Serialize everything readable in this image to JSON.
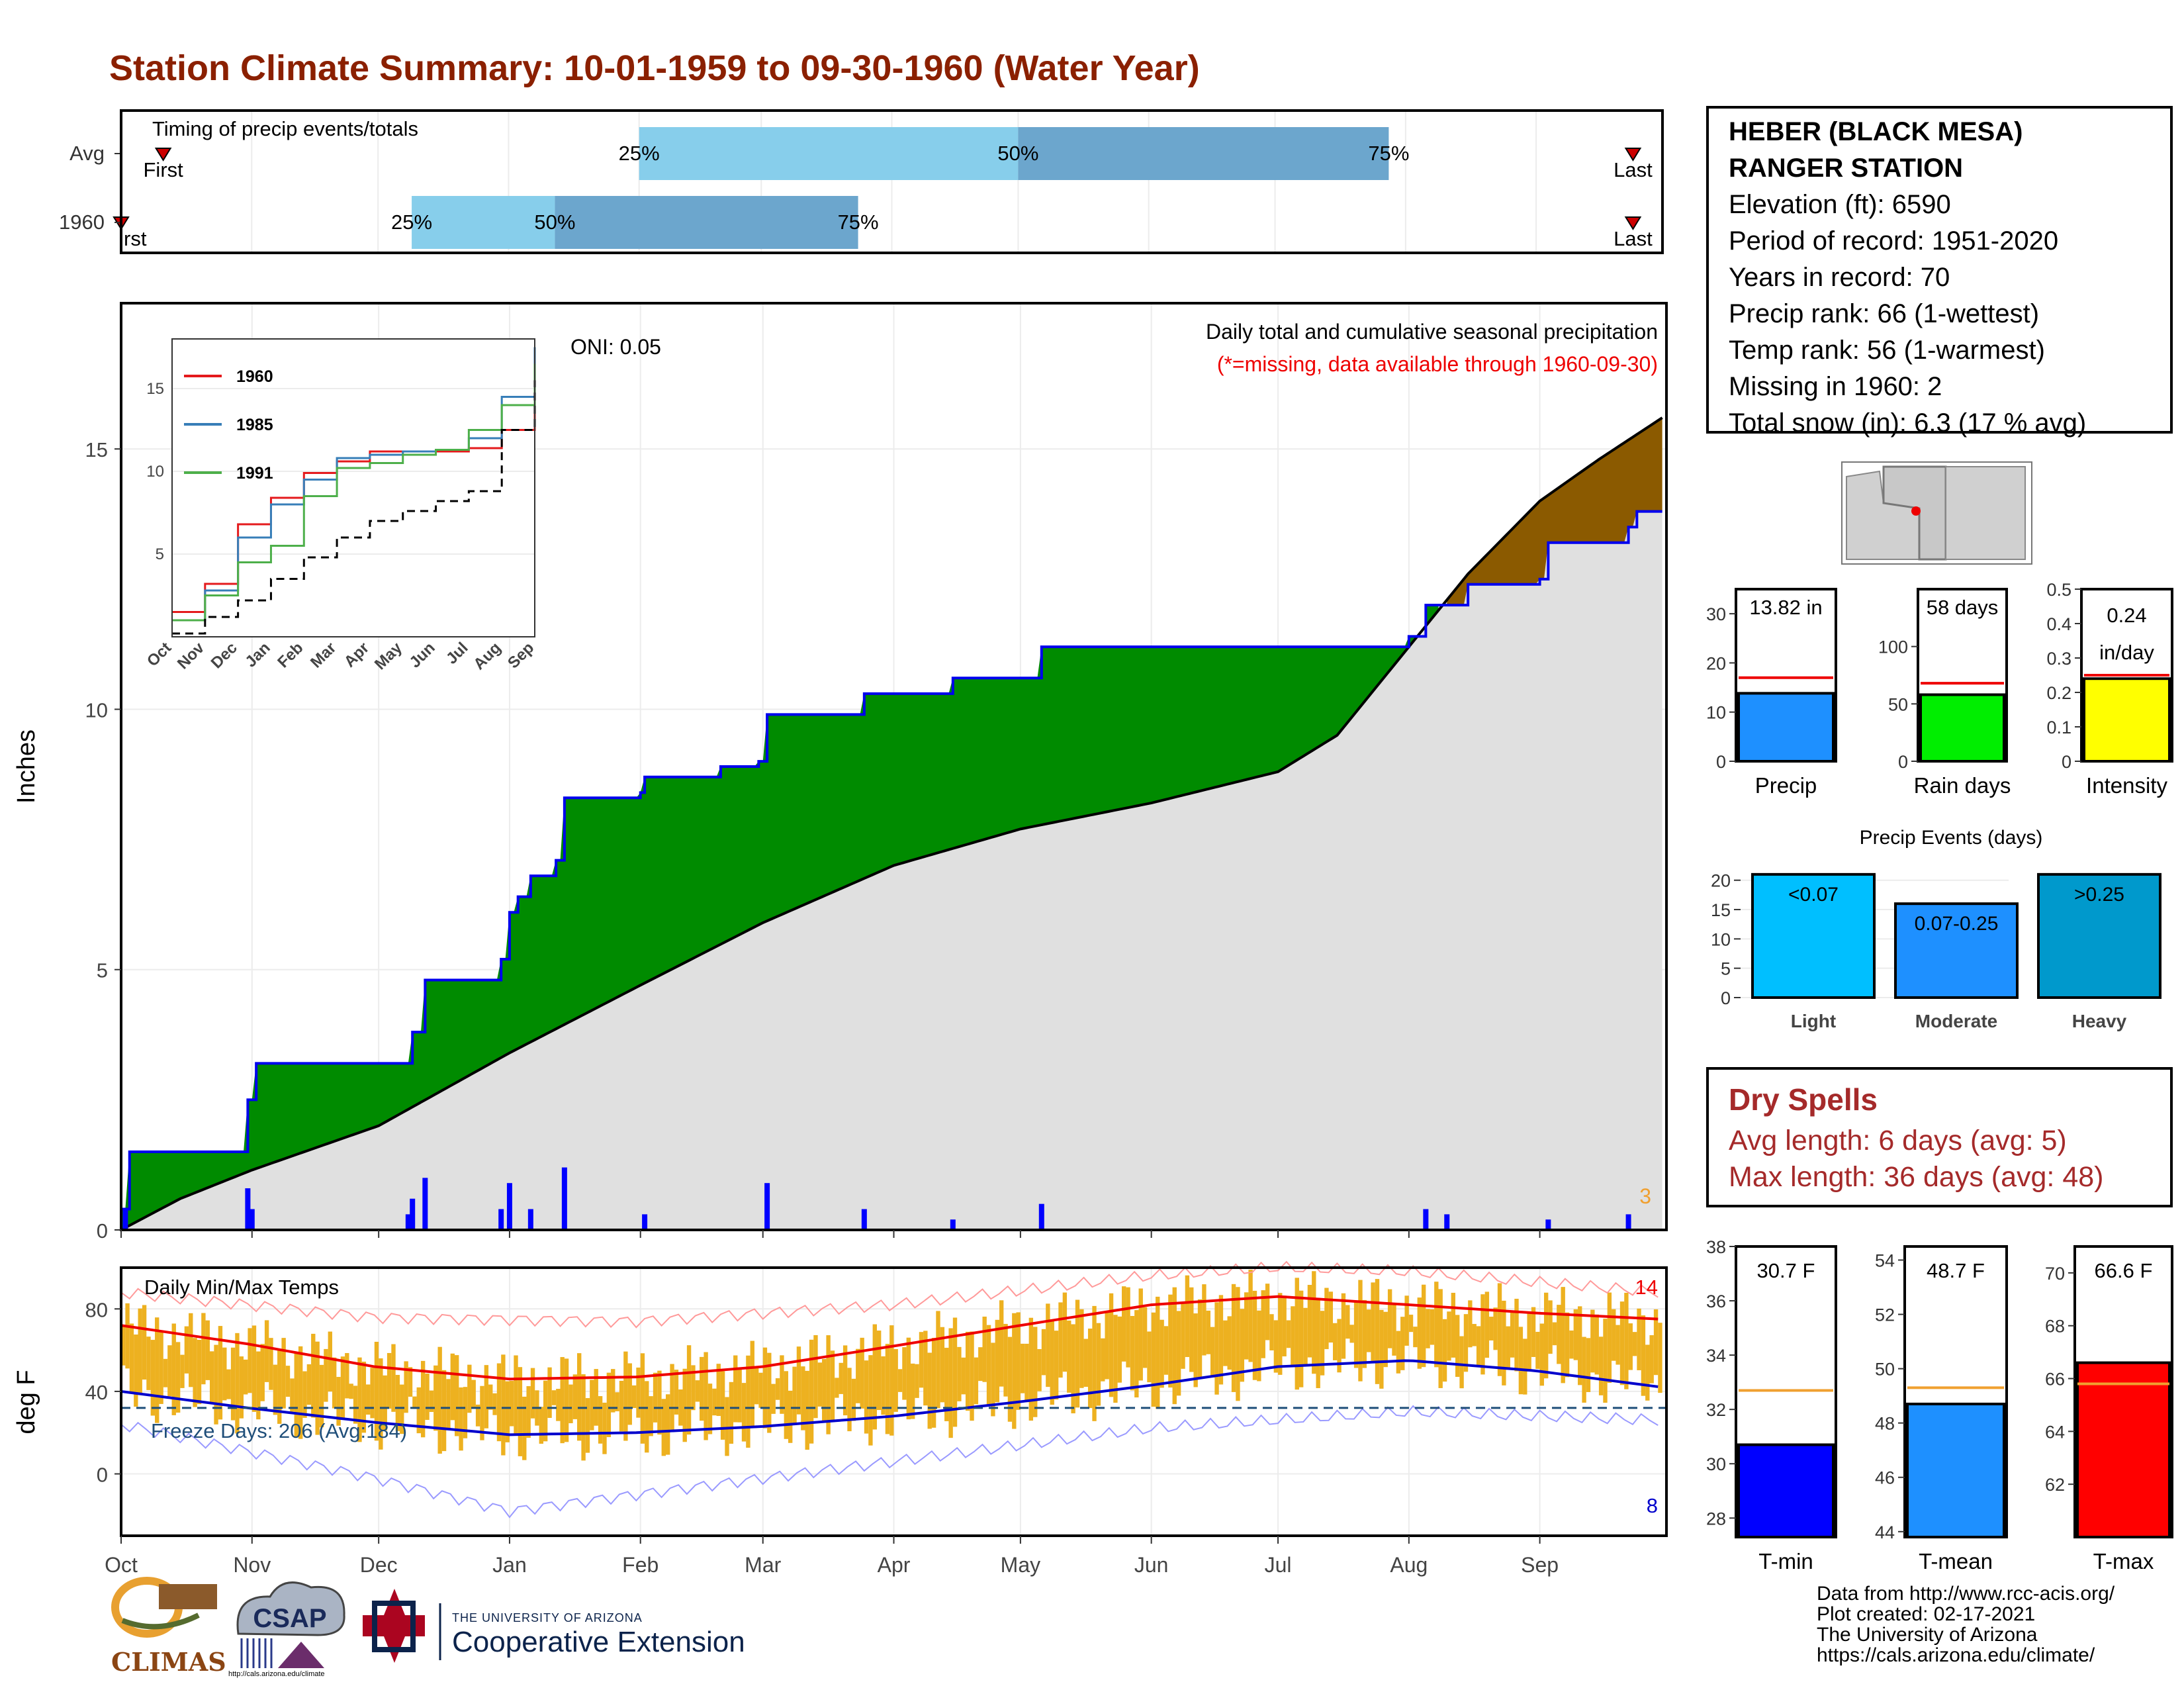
{
  "title": "Station Climate Summary: 10-01-1959 to 09-30-1960 (Water Year)",
  "station": {
    "name_line1": "HEBER (BLACK MESA)",
    "name_line2": "RANGER STATION",
    "elevation": "Elevation (ft): 6590",
    "period": "Period of record: 1951-2020",
    "years": "Years in record: 70",
    "precip_rank": "Precip rank: 66 (1-wettest)",
    "temp_rank": "Temp rank: 56 (1-warmest)",
    "missing": "Missing in 1960: 2",
    "snow": "Total snow (in): 6.3 (17 % avg)"
  },
  "dry_spells": {
    "heading": "Dry Spells",
    "avg": "Avg length: 6 days (avg: 5)",
    "max": "Max length: 36 days (avg: 48)"
  },
  "footer": [
    "Data from http://www.rcc-acis.org/",
    "Plot created: 02-17-2021",
    "The University of Arizona",
    "https://cals.arizona.edu/climate/"
  ],
  "logos": {
    "climas": "CLIMAS",
    "csap": "CSAP",
    "csap_url": "http://cals.arizona.edu/climate",
    "ua_small": "THE UNIVERSITY OF ARIZONA",
    "ua_big": "Cooperative Extension"
  },
  "colors": {
    "title": "#8B2000",
    "light_blue": "#87CEEB",
    "mid_blue": "#6CA6CD",
    "green": "#008B00",
    "brown": "#8B5A00",
    "gray_fill": "#E0E0E0",
    "temp_bar": "#EDB120"
  },
  "chart_data": [
    {
      "id": "timing",
      "type": "bar",
      "title": "Timing of precip events/totals",
      "categories": [
        "Avg",
        "1960"
      ],
      "first_label": "First",
      "last_label": "Last",
      "first_label_clipped": "rst",
      "quartile_labels": [
        "25%",
        "50%",
        "75%"
      ],
      "series": [
        {
          "name": "Avg",
          "first": "1959-10-11",
          "q25": "1960-02-01",
          "q50": "1960-05-01",
          "q75": "1960-07-28",
          "last": "1960-09-24"
        },
        {
          "name": "1960",
          "first": "1959-10-01",
          "q25": "1959-12-09",
          "q50": "1960-01-12",
          "q75": "1960-03-24",
          "last": "1960-09-24"
        }
      ]
    },
    {
      "id": "precip",
      "type": "area",
      "title": "Daily total and cumulative seasonal precipitation",
      "subtitle": "(*=missing, data available through 1960-09-30)",
      "oni": "ONI: 0.05",
      "ylabel": "Inches",
      "ylim": [
        0,
        17.8
      ],
      "yticks": [
        0,
        5,
        10,
        15
      ],
      "x_months": [
        "Oct",
        "Nov",
        "Dec",
        "Jan",
        "Feb",
        "Mar",
        "Apr",
        "May",
        "Jun",
        "Jul",
        "Aug",
        "Sep"
      ],
      "corner_count": "3",
      "cumulative_1960": [
        [
          "1959-10-01",
          0.4
        ],
        [
          "1959-10-03",
          1.5
        ],
        [
          "1959-10-30",
          1.5
        ],
        [
          "1959-10-31",
          2.5
        ],
        [
          "1959-11-02",
          3.2
        ],
        [
          "1959-12-08",
          3.2
        ],
        [
          "1959-12-09",
          3.8
        ],
        [
          "1959-12-12",
          4.8
        ],
        [
          "1959-12-30",
          5.2
        ],
        [
          "1960-01-01",
          6.1
        ],
        [
          "1960-01-03",
          6.4
        ],
        [
          "1960-01-06",
          6.8
        ],
        [
          "1960-01-12",
          7.1
        ],
        [
          "1960-01-14",
          8.3
        ],
        [
          "1960-02-01",
          8.4
        ],
        [
          "1960-02-02",
          8.7
        ],
        [
          "1960-02-20",
          8.9
        ],
        [
          "1960-02-29",
          9.0
        ],
        [
          "1960-03-02",
          9.9
        ],
        [
          "1960-03-25",
          10.3
        ],
        [
          "1960-04-15",
          10.6
        ],
        [
          "1960-05-06",
          11.2
        ],
        [
          "1960-06-30",
          11.2
        ],
        [
          "1960-07-01",
          11.2
        ],
        [
          "1960-08-01",
          11.4
        ],
        [
          "1960-08-05",
          12.0
        ],
        [
          "1960-08-15",
          12.4
        ],
        [
          "1960-09-01",
          12.5
        ],
        [
          "1960-09-03",
          13.2
        ],
        [
          "1960-09-22",
          13.5
        ],
        [
          "1960-09-24",
          13.8
        ],
        [
          "1960-09-30",
          13.8
        ]
      ],
      "average_cumulative": [
        [
          "1959-10-01",
          0.0
        ],
        [
          "1959-10-15",
          0.6
        ],
        [
          "1959-11-01",
          1.15
        ],
        [
          "1959-12-01",
          2.0
        ],
        [
          "1960-01-01",
          3.4
        ],
        [
          "1960-02-01",
          4.7
        ],
        [
          "1960-03-01",
          5.9
        ],
        [
          "1960-04-01",
          7.0
        ],
        [
          "1960-05-01",
          7.7
        ],
        [
          "1960-06-01",
          8.2
        ],
        [
          "1960-07-01",
          8.8
        ],
        [
          "1960-07-15",
          9.5
        ],
        [
          "1960-08-01",
          11.2
        ],
        [
          "1960-08-15",
          12.6
        ],
        [
          "1960-09-01",
          14.0
        ],
        [
          "1960-09-15",
          14.8
        ],
        [
          "1960-09-30",
          15.6
        ]
      ],
      "daily": [
        [
          "1959-10-02",
          0.4
        ],
        [
          "1959-10-31",
          0.8
        ],
        [
          "1959-11-01",
          0.4
        ],
        [
          "1959-12-08",
          0.3
        ],
        [
          "1959-12-09",
          0.6
        ],
        [
          "1959-12-12",
          1.0
        ],
        [
          "1959-12-30",
          0.4
        ],
        [
          "1960-01-01",
          0.9
        ],
        [
          "1960-01-06",
          0.4
        ],
        [
          "1960-01-14",
          1.2
        ],
        [
          "1960-02-02",
          0.3
        ],
        [
          "1960-03-02",
          0.9
        ],
        [
          "1960-03-25",
          0.4
        ],
        [
          "1960-04-15",
          0.2
        ],
        [
          "1960-05-06",
          0.5
        ],
        [
          "1960-08-05",
          0.4
        ],
        [
          "1960-08-10",
          0.3
        ],
        [
          "1960-09-03",
          0.2
        ],
        [
          "1960-09-22",
          0.3
        ]
      ],
      "inset": {
        "series": [
          {
            "name": "1960"
          },
          {
            "name": "1985"
          },
          {
            "name": "1991"
          }
        ],
        "yticks": [
          5,
          10,
          15
        ],
        "x_months": [
          "Oct",
          "Nov",
          "Dec",
          "Jan",
          "Feb",
          "Mar",
          "Apr",
          "May",
          "Jun",
          "Jul",
          "Aug",
          "Sep"
        ],
        "series_values": {
          "1960": [
            [
              0,
              1.5
            ],
            [
              1,
              3.2
            ],
            [
              2,
              6.8
            ],
            [
              3,
              8.4
            ],
            [
              4,
              9.9
            ],
            [
              5,
              10.6
            ],
            [
              6,
              11.2
            ],
            [
              7,
              11.2
            ],
            [
              8,
              11.2
            ],
            [
              9,
              11.4
            ],
            [
              10,
              12.5
            ],
            [
              11,
              13.8
            ]
          ],
          "1985": [
            [
              0,
              1.0
            ],
            [
              1,
              2.8
            ],
            [
              2,
              6.0
            ],
            [
              3,
              8.0
            ],
            [
              4,
              9.5
            ],
            [
              5,
              10.8
            ],
            [
              6,
              11.0
            ],
            [
              7,
              11.2
            ],
            [
              8,
              11.3
            ],
            [
              9,
              12.0
            ],
            [
              10,
              14.5
            ],
            [
              11,
              17.5
            ]
          ],
          "1991": [
            [
              0,
              1.0
            ],
            [
              1,
              2.5
            ],
            [
              2,
              4.5
            ],
            [
              3,
              5.5
            ],
            [
              4,
              8.5
            ],
            [
              5,
              10.2
            ],
            [
              6,
              10.5
            ],
            [
              7,
              11.0
            ],
            [
              8,
              11.3
            ],
            [
              9,
              12.5
            ],
            [
              10,
              14.0
            ],
            [
              11,
              16.5
            ]
          ],
          "avg": [
            [
              0,
              0.2
            ],
            [
              1,
              1.2
            ],
            [
              2,
              2.2
            ],
            [
              3,
              3.5
            ],
            [
              4,
              4.8
            ],
            [
              5,
              6.0
            ],
            [
              6,
              7.0
            ],
            [
              7,
              7.6
            ],
            [
              8,
              8.2
            ],
            [
              9,
              8.8
            ],
            [
              10,
              12.5
            ],
            [
              11,
              15.5
            ]
          ]
        }
      }
    },
    {
      "id": "temps",
      "type": "bar",
      "title": "Daily Min/Max Temps",
      "ylabel": "deg F",
      "ylim": [
        -30,
        100
      ],
      "yticks": [
        0,
        40,
        80
      ],
      "freeze_label": "Freeze Days: 206 (Avg:184)",
      "freeze_line": 32,
      "record_high_count": "14",
      "record_low_count": "8",
      "x_months": [
        "Oct",
        "Nov",
        "Dec",
        "Jan",
        "Feb",
        "Mar",
        "Apr",
        "May",
        "Jun",
        "Jul",
        "Aug",
        "Sep"
      ],
      "avg_max": [
        [
          0,
          72
        ],
        [
          30,
          63
        ],
        [
          60,
          52
        ],
        [
          92,
          46
        ],
        [
          122,
          47
        ],
        [
          152,
          52
        ],
        [
          183,
          62
        ],
        [
          213,
          72
        ],
        [
          244,
          82
        ],
        [
          274,
          86
        ],
        [
          305,
          82
        ],
        [
          335,
          78
        ],
        [
          365,
          75
        ]
      ],
      "avg_min": [
        [
          0,
          40
        ],
        [
          30,
          32
        ],
        [
          60,
          25
        ],
        [
          92,
          19
        ],
        [
          122,
          20
        ],
        [
          152,
          23
        ],
        [
          183,
          28
        ],
        [
          213,
          35
        ],
        [
          244,
          43
        ],
        [
          274,
          52
        ],
        [
          305,
          55
        ],
        [
          335,
          50
        ],
        [
          365,
          42
        ]
      ],
      "record_max": [
        [
          0,
          88
        ],
        [
          60,
          76
        ],
        [
          122,
          74
        ],
        [
          183,
          82
        ],
        [
          244,
          96
        ],
        [
          274,
          100
        ],
        [
          305,
          98
        ],
        [
          365,
          88
        ]
      ],
      "record_min": [
        [
          0,
          24
        ],
        [
          60,
          -2
        ],
        [
          92,
          -18
        ],
        [
          122,
          -10
        ],
        [
          183,
          6
        ],
        [
          244,
          22
        ],
        [
          305,
          30
        ],
        [
          365,
          26
        ]
      ]
    },
    {
      "id": "precip_bars",
      "type": "bar",
      "categories": [
        "Precip",
        "Rain days",
        "Intensity"
      ],
      "values": [
        13.82,
        58,
        0.24
      ],
      "averages": [
        17.0,
        68,
        0.25
      ],
      "labels": [
        "13.82 in",
        "58 days",
        "0.24",
        "in/day"
      ],
      "ylims": [
        [
          0,
          35
        ],
        [
          0,
          150
        ],
        [
          0,
          0.5
        ]
      ],
      "yticks": [
        [
          0,
          10,
          20,
          30
        ],
        [
          0,
          50,
          100
        ],
        [
          0.0,
          0.1,
          0.2,
          0.3,
          0.4,
          0.5
        ]
      ]
    },
    {
      "id": "events",
      "type": "bar",
      "title": "Precip Events (days)",
      "categories": [
        "Light",
        "Moderate",
        "Heavy"
      ],
      "bar_labels": [
        "<0.07",
        "0.07-0.25",
        ">0.25"
      ],
      "values": [
        21,
        16,
        21
      ],
      "ylim": [
        0,
        22
      ],
      "yticks": [
        0,
        5,
        10,
        15,
        20
      ]
    },
    {
      "id": "temp_bars",
      "type": "bar",
      "categories": [
        "T-min",
        "T-mean",
        "T-max"
      ],
      "values": [
        30.7,
        48.7,
        66.6
      ],
      "labels": [
        "30.7 F",
        "48.7 F",
        "66.6 F"
      ],
      "averages": [
        32.7,
        49.3,
        65.8
      ],
      "ylims": [
        [
          27.3,
          38
        ],
        [
          43.8,
          54.5
        ],
        [
          60,
          71
        ]
      ],
      "yticks": [
        [
          28,
          30,
          32,
          34,
          36,
          38
        ],
        [
          44,
          46,
          48,
          50,
          52,
          54
        ],
        [
          62,
          64,
          66,
          68,
          70
        ]
      ]
    }
  ]
}
